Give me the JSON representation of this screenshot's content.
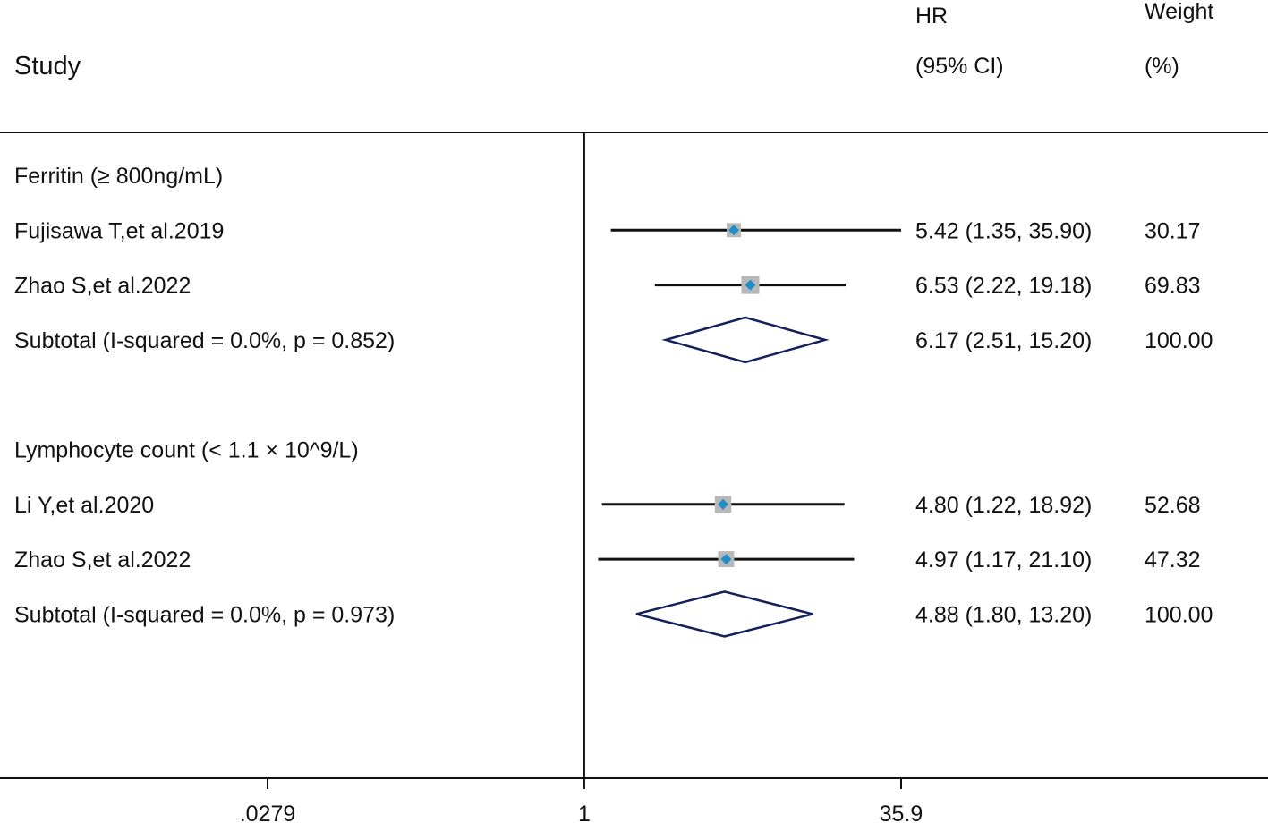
{
  "header": {
    "study": "Study",
    "effect_line1": "HR",
    "effect_line2": "(95% CI)",
    "weight_line1": "Weight",
    "weight_line2": "(%)"
  },
  "chart_data": {
    "type": "forest",
    "scale": "log",
    "x_ticks": [
      {
        "value": 0.0279,
        "label": ".0279"
      },
      {
        "value": 1,
        "label": "1"
      },
      {
        "value": 35.9,
        "label": "35.9"
      }
    ],
    "null_line": 1,
    "colors": {
      "point": "#1f8fc9",
      "weight_box": "#b8b8b8",
      "diamond_stroke": "#15205a",
      "ci_line": "#111111"
    },
    "rows": [
      {
        "kind": "group",
        "label": "Ferritin (≥ 800ng/mL)"
      },
      {
        "kind": "study",
        "label": "Fujisawa T,et al.2019",
        "hr": 5.42,
        "lo": 1.35,
        "hi": 35.9,
        "weight": 30.17,
        "text": "5.42 (1.35, 35.90)",
        "weight_text": "30.17"
      },
      {
        "kind": "study",
        "label": "Zhao S,et al.2022",
        "hr": 6.53,
        "lo": 2.22,
        "hi": 19.18,
        "weight": 69.83,
        "text": "6.53 (2.22, 19.18)",
        "weight_text": "69.83"
      },
      {
        "kind": "subtotal",
        "label": "Subtotal  (I-squared = 0.0%, p = 0.852)",
        "hr": 6.17,
        "lo": 2.51,
        "hi": 15.2,
        "text": "6.17 (2.51, 15.20)",
        "weight_text": "100.00"
      },
      {
        "kind": "blank"
      },
      {
        "kind": "group",
        "label": "Lymphocyte count (< 1.1 × 10^9/L)"
      },
      {
        "kind": "study",
        "label": "Li Y,et al.2020",
        "hr": 4.8,
        "lo": 1.22,
        "hi": 18.92,
        "weight": 52.68,
        "text": "4.80 (1.22, 18.92)",
        "weight_text": "52.68"
      },
      {
        "kind": "study",
        "label": "Zhao S,et al.2022",
        "hr": 4.97,
        "lo": 1.17,
        "hi": 21.1,
        "weight": 47.32,
        "text": "4.97 (1.17, 21.10)",
        "weight_text": "47.32"
      },
      {
        "kind": "subtotal",
        "label": "Subtotal  (I-squared = 0.0%, p = 0.973)",
        "hr": 4.88,
        "lo": 1.8,
        "hi": 13.2,
        "text": "4.88 (1.80, 13.20)",
        "weight_text": "100.00"
      }
    ]
  }
}
